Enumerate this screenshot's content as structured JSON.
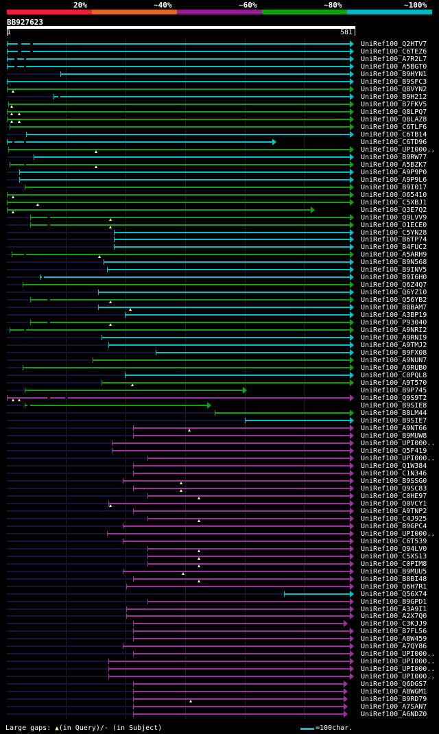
{
  "legend": {
    "items": [
      {
        "label": "20%",
        "color": "#e8203a",
        "start": 0,
        "end": 20
      },
      {
        "label": "~40%",
        "color": "#e06820",
        "start": 20,
        "end": 40
      },
      {
        "label": "~60%",
        "color": "#902090",
        "start": 40,
        "end": 60
      },
      {
        "label": "~80%",
        "color": "#10a010",
        "start": 60,
        "end": 80
      },
      {
        "label": "~100%",
        "color": "#00b8c0",
        "start": 80,
        "end": 100
      }
    ]
  },
  "query": {
    "name": "BB927623",
    "start": "1",
    "end": "581",
    "length": 581
  },
  "colors": {
    "cyan": "#00c0c8",
    "green": "#10a010",
    "purple": "#a030a0",
    "dark": "#14143c",
    "gap_marker": "#ffffff"
  },
  "hits": [
    {
      "name": "UniRef100_Q2HTV7",
      "color": "cyan",
      "start": 1,
      "end": 581,
      "gaps": [
        [
          20,
          25
        ],
        [
          40,
          45
        ]
      ],
      "marks": []
    },
    {
      "name": "UniRef100_C6TEZ6",
      "color": "cyan",
      "start": 1,
      "end": 581,
      "gaps": [
        [
          20,
          25
        ],
        [
          40,
          45
        ]
      ],
      "marks": []
    },
    {
      "name": "UniRef100_A7R2L7",
      "color": "cyan",
      "start": 1,
      "end": 581,
      "gaps": [
        [
          14,
          18
        ],
        [
          30,
          34
        ]
      ],
      "marks": []
    },
    {
      "name": "UniRef100_A5BGT0",
      "color": "cyan",
      "start": 1,
      "end": 581,
      "gaps": [
        [
          14,
          18
        ],
        [
          30,
          34
        ]
      ],
      "marks": []
    },
    {
      "name": "UniRef100_B9HYN1",
      "color": "cyan",
      "start": 92,
      "end": 581,
      "gaps": [],
      "marks": []
    },
    {
      "name": "UniRef100_B9SFC3",
      "color": "cyan",
      "start": 1,
      "end": 581,
      "gaps": [],
      "marks": []
    },
    {
      "name": "UniRef100_Q8VYN2",
      "color": "green",
      "start": 1,
      "end": 581,
      "gaps": [],
      "marks": [
        11
      ]
    },
    {
      "name": "UniRef100_B9H212",
      "color": "cyan",
      "start": 80,
      "end": 581,
      "gaps": [
        [
          88,
          92
        ]
      ],
      "marks": []
    },
    {
      "name": "UniRef100_B7FKV5",
      "color": "green",
      "start": 3,
      "end": 581,
      "gaps": [],
      "marks": [
        9
      ]
    },
    {
      "name": "UniRef100_Q8LPQ7",
      "color": "green",
      "start": 1,
      "end": 581,
      "gaps": [],
      "marks": [
        9,
        22
      ]
    },
    {
      "name": "UniRef100_Q8LAZ8",
      "color": "green",
      "start": 1,
      "end": 581,
      "gaps": [],
      "marks": [
        9,
        22
      ]
    },
    {
      "name": "UniRef100_C6TLF6",
      "color": "green",
      "start": 6,
      "end": 581,
      "gaps": [],
      "marks": []
    },
    {
      "name": "UniRef100_C6TB14",
      "color": "cyan",
      "start": 34,
      "end": 581,
      "gaps": [],
      "marks": []
    },
    {
      "name": "UniRef100_C6TD96",
      "color": "cyan",
      "start": 1,
      "end": 450,
      "gaps": [
        [
          10,
          14
        ],
        [
          30,
          34
        ]
      ],
      "marks": []
    },
    {
      "name": "UniRef100_UPI000..",
      "color": "green",
      "start": 3,
      "end": 581,
      "gaps": [],
      "marks": [
        152
      ]
    },
    {
      "name": "UniRef100_B9RW77",
      "color": "cyan",
      "start": 46,
      "end": 581,
      "gaps": [],
      "marks": []
    },
    {
      "name": "UniRef100_A5BZK7",
      "color": "green",
      "start": 6,
      "end": 581,
      "gaps": [
        [
          30,
          34
        ]
      ],
      "marks": [
        152
      ]
    },
    {
      "name": "UniRef100_A9P9P0",
      "color": "cyan",
      "start": 22,
      "end": 581,
      "gaps": [],
      "marks": []
    },
    {
      "name": "UniRef100_A9P9L6",
      "color": "cyan",
      "start": 22,
      "end": 581,
      "gaps": [],
      "marks": []
    },
    {
      "name": "UniRef100_B9I017",
      "color": "green",
      "start": 31,
      "end": 581,
      "gaps": [],
      "marks": []
    },
    {
      "name": "UniRef100_O65410",
      "color": "green",
      "start": 1,
      "end": 581,
      "gaps": [],
      "marks": [
        11
      ]
    },
    {
      "name": "UniRef100_C5XBJ1",
      "color": "green",
      "start": 1,
      "end": 581,
      "gaps": [],
      "marks": [
        53
      ]
    },
    {
      "name": "UniRef100_Q3E7Q2",
      "color": "green",
      "start": 1,
      "end": 515,
      "gaps": [],
      "marks": [
        11
      ]
    },
    {
      "name": "UniRef100_Q9LVV9",
      "color": "green",
      "start": 40,
      "end": 581,
      "gaps": [
        [
          70,
          74
        ]
      ],
      "marks": [
        176
      ]
    },
    {
      "name": "UniRef100_O1ECE0",
      "color": "green",
      "start": 40,
      "end": 581,
      "gaps": [
        [
          70,
          74
        ]
      ],
      "marks": [
        176
      ]
    },
    {
      "name": "UniRef100_C5YN28",
      "color": "cyan",
      "start": 182,
      "end": 581,
      "gaps": [],
      "marks": []
    },
    {
      "name": "UniRef100_B6TP74",
      "color": "cyan",
      "start": 182,
      "end": 581,
      "gaps": [],
      "marks": []
    },
    {
      "name": "UniRef100_B4FUC2",
      "color": "cyan",
      "start": 182,
      "end": 581,
      "gaps": [],
      "marks": []
    },
    {
      "name": "UniRef100_A5ARH9",
      "color": "green",
      "start": 9,
      "end": 581,
      "gaps": [
        [
          30,
          34
        ]
      ],
      "marks": [
        158
      ]
    },
    {
      "name": "UniRef100_B9N568",
      "color": "cyan",
      "start": 164,
      "end": 581,
      "gaps": [],
      "marks": []
    },
    {
      "name": "UniRef100_B9INV5",
      "color": "cyan",
      "start": 170,
      "end": 581,
      "gaps": [],
      "marks": []
    },
    {
      "name": "UniRef100_B9I6H0",
      "color": "cyan",
      "start": 57,
      "end": 581,
      "gaps": [
        [
          60,
          64
        ]
      ],
      "marks": []
    },
    {
      "name": "UniRef100_Q6Z4Q7",
      "color": "green",
      "start": 28,
      "end": 581,
      "gaps": [],
      "marks": []
    },
    {
      "name": "UniRef100_Q6YZ10",
      "color": "cyan",
      "start": 155,
      "end": 581,
      "gaps": [],
      "marks": []
    },
    {
      "name": "UniRef100_Q56YB2",
      "color": "green",
      "start": 40,
      "end": 581,
      "gaps": [
        [
          70,
          74
        ]
      ],
      "marks": [
        176
      ]
    },
    {
      "name": "UniRef100_B8BAM7",
      "color": "cyan",
      "start": 155,
      "end": 581,
      "gaps": [],
      "marks": [
        210
      ]
    },
    {
      "name": "UniRef100_A3BP19",
      "color": "cyan",
      "start": 200,
      "end": 581,
      "gaps": [],
      "marks": []
    },
    {
      "name": "UniRef100_P93040",
      "color": "green",
      "start": 40,
      "end": 581,
      "gaps": [
        [
          70,
          74
        ]
      ],
      "marks": [
        176
      ]
    },
    {
      "name": "UniRef100_A9NRI2",
      "color": "green",
      "start": 6,
      "end": 581,
      "gaps": [
        [
          30,
          34
        ]
      ],
      "marks": []
    },
    {
      "name": "UniRef100_A9RNI9",
      "color": "cyan",
      "start": 161,
      "end": 581,
      "gaps": [],
      "marks": []
    },
    {
      "name": "UniRef100_A9TMJ2",
      "color": "cyan",
      "start": 173,
      "end": 581,
      "gaps": [],
      "marks": []
    },
    {
      "name": "UniRef100_B9FX08",
      "color": "cyan",
      "start": 253,
      "end": 581,
      "gaps": [],
      "marks": []
    },
    {
      "name": "UniRef100_A9NUN7",
      "color": "green",
      "start": 146,
      "end": 581,
      "gaps": [],
      "marks": []
    },
    {
      "name": "UniRef100_A9RUB0",
      "color": "green",
      "start": 28,
      "end": 581,
      "gaps": [],
      "marks": []
    },
    {
      "name": "UniRef100_C0PQL8",
      "color": "cyan",
      "start": 200,
      "end": 581,
      "gaps": [],
      "marks": []
    },
    {
      "name": "UniRef100_A9T570",
      "color": "green",
      "start": 161,
      "end": 581,
      "gaps": [],
      "marks": [
        213
      ]
    },
    {
      "name": "UniRef100_B9P745",
      "color": "green",
      "start": 31,
      "end": 400,
      "gaps": [],
      "marks": []
    },
    {
      "name": "UniRef100_Q9S9T2",
      "color": "purple",
      "start": 1,
      "end": 581,
      "gaps": [
        [
          70,
          74
        ],
        [
          100,
          104
        ]
      ],
      "marks": [
        11,
        22
      ]
    },
    {
      "name": "UniRef100_B9SIE8",
      "color": "green",
      "start": 31,
      "end": 340,
      "gaps": [
        [
          36,
          40
        ]
      ],
      "marks": []
    },
    {
      "name": "UniRef100_B8LM44",
      "color": "green",
      "start": 353,
      "end": 581,
      "gaps": [],
      "marks": []
    },
    {
      "name": "UniRef100_B9SIE7",
      "color": "cyan",
      "start": 403,
      "end": 581,
      "gaps": [],
      "marks": []
    },
    {
      "name": "UniRef100_A9NT66",
      "color": "purple",
      "start": 215,
      "end": 581,
      "gaps": [],
      "marks": [
        309
      ]
    },
    {
      "name": "UniRef100_B9MUW8",
      "color": "purple",
      "start": 215,
      "end": 581,
      "gaps": [],
      "marks": []
    },
    {
      "name": "UniRef100_UPI000..",
      "color": "purple",
      "start": 179,
      "end": 581,
      "gaps": [],
      "marks": []
    },
    {
      "name": "UniRef100_Q5F419",
      "color": "purple",
      "start": 179,
      "end": 581,
      "gaps": [],
      "marks": []
    },
    {
      "name": "UniRef100_UPI000..",
      "color": "purple",
      "start": 239,
      "end": 581,
      "gaps": [],
      "marks": []
    },
    {
      "name": "UniRef100_Q1W384",
      "color": "purple",
      "start": 215,
      "end": 581,
      "gaps": [],
      "marks": []
    },
    {
      "name": "UniRef100_C1N346",
      "color": "purple",
      "start": 215,
      "end": 581,
      "gaps": [],
      "marks": []
    },
    {
      "name": "UniRef100_B9SSG0",
      "color": "purple",
      "start": 197,
      "end": 581,
      "gaps": [],
      "marks": [
        296
      ]
    },
    {
      "name": "UniRef100_Q9SC83",
      "color": "purple",
      "start": 215,
      "end": 581,
      "gaps": [],
      "marks": [
        296
      ]
    },
    {
      "name": "UniRef100_C0HE97",
      "color": "purple",
      "start": 239,
      "end": 581,
      "gaps": [],
      "marks": [
        326
      ]
    },
    {
      "name": "UniRef100_Q0VCY1",
      "color": "purple",
      "start": 173,
      "end": 581,
      "gaps": [],
      "marks": [
        176
      ]
    },
    {
      "name": "UniRef100_A9TNP2",
      "color": "purple",
      "start": 215,
      "end": 581,
      "gaps": [],
      "marks": []
    },
    {
      "name": "UniRef100_C4J925",
      "color": "purple",
      "start": 239,
      "end": 581,
      "gaps": [],
      "marks": [
        326
      ]
    },
    {
      "name": "UniRef100_B9GPC4",
      "color": "purple",
      "start": 197,
      "end": 581,
      "gaps": [],
      "marks": []
    },
    {
      "name": "UniRef100_UPI000..",
      "color": "purple",
      "start": 170,
      "end": 581,
      "gaps": [],
      "marks": []
    },
    {
      "name": "UniRef100_C6T539",
      "color": "purple",
      "start": 197,
      "end": 581,
      "gaps": [],
      "marks": []
    },
    {
      "name": "UniRef100_Q94LV0",
      "color": "purple",
      "start": 239,
      "end": 581,
      "gaps": [],
      "marks": [
        326
      ]
    },
    {
      "name": "UniRef100_C5XS13",
      "color": "purple",
      "start": 239,
      "end": 581,
      "gaps": [],
      "marks": [
        326
      ]
    },
    {
      "name": "UniRef100_C0PIM8",
      "color": "purple",
      "start": 239,
      "end": 581,
      "gaps": [],
      "marks": [
        326
      ]
    },
    {
      "name": "UniRef100_B9MUU5",
      "color": "purple",
      "start": 197,
      "end": 581,
      "gaps": [],
      "marks": [
        299
      ]
    },
    {
      "name": "UniRef100_B8BI48",
      "color": "purple",
      "start": 215,
      "end": 581,
      "gaps": [],
      "marks": [
        326
      ]
    },
    {
      "name": "UniRef100_Q6H7R1",
      "color": "purple",
      "start": 203,
      "end": 581,
      "gaps": [],
      "marks": []
    },
    {
      "name": "UniRef100_Q56X74",
      "color": "cyan",
      "start": 470,
      "end": 581,
      "gaps": [],
      "marks": []
    },
    {
      "name": "UniRef100_B9GPD1",
      "color": "purple",
      "start": 239,
      "end": 581,
      "gaps": [],
      "marks": []
    },
    {
      "name": "UniRef100_A3A9I1",
      "color": "purple",
      "start": 203,
      "end": 581,
      "gaps": [],
      "marks": []
    },
    {
      "name": "UniRef100_A2X7Q0",
      "color": "purple",
      "start": 203,
      "end": 581,
      "gaps": [],
      "marks": []
    },
    {
      "name": "UniRef100_C3KJJ9",
      "color": "purple",
      "start": 215,
      "end": 570,
      "gaps": [],
      "marks": []
    },
    {
      "name": "UniRef100_B7FL56",
      "color": "purple",
      "start": 215,
      "end": 581,
      "gaps": [],
      "marks": []
    },
    {
      "name": "UniRef100_A8W459",
      "color": "purple",
      "start": 215,
      "end": 581,
      "gaps": [],
      "marks": []
    },
    {
      "name": "UniRef100_A7QY86",
      "color": "purple",
      "start": 197,
      "end": 581,
      "gaps": [],
      "marks": []
    },
    {
      "name": "UniRef100_UPI000..",
      "color": "purple",
      "start": 215,
      "end": 581,
      "gaps": [],
      "marks": []
    },
    {
      "name": "UniRef100_UPI000..",
      "color": "purple",
      "start": 173,
      "end": 581,
      "gaps": [],
      "marks": []
    },
    {
      "name": "UniRef100_UPI000..",
      "color": "purple",
      "start": 173,
      "end": 581,
      "gaps": [],
      "marks": []
    },
    {
      "name": "UniRef100_UPI000..",
      "color": "purple",
      "start": 173,
      "end": 581,
      "gaps": [],
      "marks": []
    },
    {
      "name": "UniRef100_Q6DGS7",
      "color": "purple",
      "start": 215,
      "end": 570,
      "gaps": [],
      "marks": []
    },
    {
      "name": "UniRef100_A8WGM1",
      "color": "purple",
      "start": 215,
      "end": 570,
      "gaps": [],
      "marks": []
    },
    {
      "name": "UniRef100_B9RD79",
      "color": "purple",
      "start": 215,
      "end": 570,
      "gaps": [],
      "marks": [
        312
      ]
    },
    {
      "name": "UniRef100_A7SAN7",
      "color": "purple",
      "start": 215,
      "end": 570,
      "gaps": [],
      "marks": []
    },
    {
      "name": "UniRef100_A6NDZ0",
      "color": "purple",
      "start": 215,
      "end": 570,
      "gaps": [],
      "marks": []
    }
  ],
  "footer": {
    "large_gaps_label": "Large gaps:",
    "query_gap_label": "(in Query)/- (in Subject)",
    "query_gap_symbol": "▲",
    "scale_label": "=100char."
  }
}
